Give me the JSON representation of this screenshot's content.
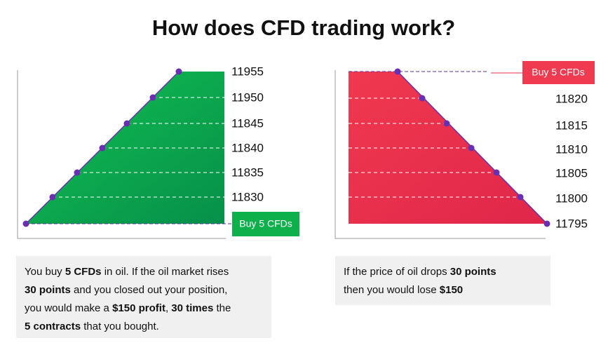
{
  "title": "How does CFD trading work?",
  "left": {
    "levels": [
      "11955",
      "11950",
      "11845",
      "11840",
      "11835",
      "11830"
    ],
    "button": "Buy 5 CFDs",
    "caption": [
      [
        {
          "text": "You buy ",
          "bold": false
        },
        {
          "text": "5 CFDs",
          "bold": true
        },
        {
          "text": " in oil. If the oil market rises",
          "bold": false
        }
      ],
      [
        {
          "text": "30 points",
          "bold": true
        },
        {
          "text": " and you closed out your position,",
          "bold": false
        }
      ],
      [
        {
          "text": "you would make a ",
          "bold": false
        },
        {
          "text": "$150 profit",
          "bold": true
        },
        {
          "text": ", ",
          "bold": false
        },
        {
          "text": "30 times",
          "bold": true
        },
        {
          "text": " the",
          "bold": false
        }
      ],
      [
        {
          "text": "5 contracts",
          "bold": true
        },
        {
          "text": " that you bought.",
          "bold": false
        }
      ]
    ]
  },
  "right": {
    "button": "Buy 5 CFDs",
    "levels": [
      "11820",
      "11815",
      "11810",
      "11805",
      "11800",
      "11795"
    ],
    "caption": [
      [
        {
          "text": "If the price of oil drops ",
          "bold": false
        },
        {
          "text": "30 points",
          "bold": true
        }
      ],
      [
        {
          "text": "then you would lose ",
          "bold": false
        },
        {
          "text": "$150",
          "bold": true
        }
      ]
    ]
  }
}
